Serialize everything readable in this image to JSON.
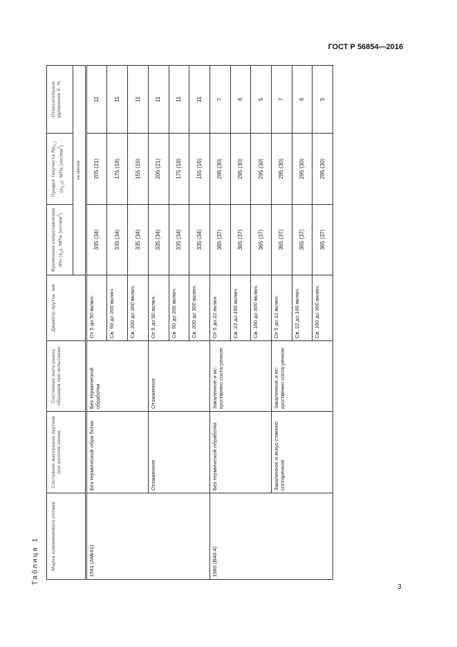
{
  "page": {
    "doc_code": "ГОСТ Р 56854—2016",
    "page_number": "3",
    "table_caption": "Таблица 1"
  },
  "headers": {
    "grade": "Марка алюминиевого сплава",
    "cond_mfg": "Состояние материала прутков при изготов-лении",
    "cond_test": "Состояние мате-риала образцов при испытании",
    "diameter": "Диаметр прутка, мм",
    "rm": {
      "a": "Временное сопротивление ",
      "sym": "Rm",
      "b": " (σ",
      "sub": "в",
      "c": "), МПа (кгс/мм",
      "sup": "2",
      "d": ")"
    },
    "rp": {
      "a": "Предел текучести ",
      "sym": "Rp",
      "sub": "0,2",
      "b": " (σ",
      "sub2": "0,2",
      "c": "), МПа (кгс/мм",
      "sup": "2",
      "d": ")"
    },
    "elong": "Относительное удлинение δ, %",
    "min_note": "не менее"
  },
  "groups": [
    {
      "grade": "1561 (АМг61)",
      "conditions": [
        {
          "mfg": "Без термической обра-ботки",
          "test": "Без термической обработки",
          "rows": [
            {
              "dia": "От 5 до 50 включ.",
              "rm": "335 (34)",
              "rp": "205 (21)",
              "el": "11"
            },
            {
              "dia": "Св. 50 до 200 включ.",
              "rm": "335 (34)",
              "rp": "175 (18)",
              "el": "11"
            },
            {
              "dia": "Св. 200 до 300 включ.",
              "rm": "335 (34)",
              "rp": "155 (16)",
              "el": "11"
            }
          ]
        },
        {
          "mfg": "Отожженное",
          "test": "Отожженное",
          "rows": [
            {
              "dia": "От 5 до 50 включ.",
              "rm": "335 (34)",
              "rp": "205 (21)",
              "el": "11"
            },
            {
              "dia": "Св. 50 до 200 включ.",
              "rm": "335 (34)",
              "rp": "175 (18)",
              "el": "11"
            },
            {
              "dia": "Св. 200 до 300 включ.",
              "rm": "335 (34)",
              "rp": "155 (16)",
              "el": "11"
            }
          ]
        }
      ]
    },
    {
      "grade": "1980 (В48-4)",
      "conditions": [
        {
          "mfg": "Без термической обработки",
          "test": "Закаленное и ис-кусственно соста-ренное",
          "rows": [
            {
              "dia": "От 5 до 22 включ.",
              "rm": "365 (37)",
              "rp": "295 (30)",
              "el": "7"
            },
            {
              "dia": "Св. 22 до 160 включ.",
              "rm": "365 (37)",
              "rp": "295 (30)",
              "el": "6"
            },
            {
              "dia": "Св. 160 до 300 включ.",
              "rm": "365 (37)",
              "rp": "295 (30)",
              "el": "5"
            }
          ]
        },
        {
          "mfg": "Закаленное и искус-ственно состаренное",
          "test": "Закаленное и ис-кусственно соста-ренное",
          "rows": [
            {
              "dia": "От 5 до 22 включ.",
              "rm": "365 (37)",
              "rp": "295 (30)",
              "el": "7"
            },
            {
              "dia": "Св. 22 до 160 включ.",
              "rm": "365 (37)",
              "rp": "295 (30)",
              "el": "6"
            },
            {
              "dia": "Св. 160 до 300 включ.",
              "rm": "365 (37)",
              "rp": "295 (30)",
              "el": "5"
            }
          ]
        }
      ]
    }
  ]
}
